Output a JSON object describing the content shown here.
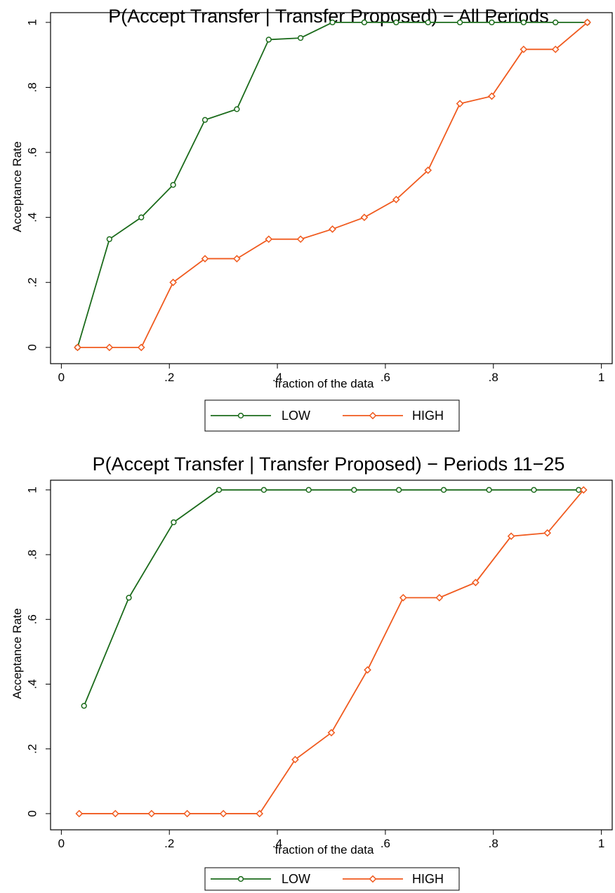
{
  "colors": {
    "low": "#1b6b1b",
    "high": "#f05a1e",
    "frame": "#000000"
  },
  "chart_data": [
    {
      "type": "line",
      "title": "P(Accept Transfer | Transfer Proposed) − All Periods",
      "xlabel": "fraction of the data",
      "ylabel": "Acceptance Rate",
      "xlim": [
        -0.02,
        1.02
      ],
      "ylim": [
        -0.05,
        1.03
      ],
      "xticks": [
        0,
        0.2,
        0.4,
        0.6,
        0.8,
        1
      ],
      "xtick_labels": [
        "0",
        ".2",
        ".4",
        ".6",
        ".8",
        "1"
      ],
      "yticks": [
        0,
        0.2,
        0.4,
        0.6,
        0.8,
        1
      ],
      "ytick_labels": [
        "0",
        ".2",
        ".4",
        ".6",
        ".8",
        "1"
      ],
      "legend": {
        "placement": "bottom",
        "entries": [
          "LOW",
          "HIGH"
        ]
      },
      "series": [
        {
          "name": "LOW",
          "marker": "circle",
          "x": [
            0.03,
            0.089,
            0.148,
            0.207,
            0.266,
            0.325,
            0.384,
            0.443,
            0.502,
            0.561,
            0.62,
            0.679,
            0.738,
            0.797,
            0.856,
            0.915,
            0.974
          ],
          "y": [
            0,
            0.333,
            0.4,
            0.5,
            0.7,
            0.733,
            0.947,
            0.952,
            1,
            1,
            1,
            1,
            1,
            1,
            1,
            1,
            1
          ]
        },
        {
          "name": "HIGH",
          "marker": "diamond",
          "x": [
            0.03,
            0.089,
            0.148,
            0.207,
            0.266,
            0.325,
            0.384,
            0.443,
            0.502,
            0.561,
            0.62,
            0.679,
            0.738,
            0.797,
            0.856,
            0.915,
            0.974
          ],
          "y": [
            0,
            0,
            0,
            0.2,
            0.273,
            0.273,
            0.333,
            0.333,
            0.364,
            0.4,
            0.455,
            0.545,
            0.75,
            0.773,
            0.917,
            0.917,
            1
          ]
        }
      ]
    },
    {
      "type": "line",
      "title": "P(Accept Transfer | Transfer Proposed) − Periods 11−25",
      "xlabel": "fraction of the data",
      "ylabel": "Acceptance Rate",
      "xlim": [
        -0.02,
        1.02
      ],
      "ylim": [
        -0.05,
        1.03
      ],
      "xticks": [
        0,
        0.2,
        0.4,
        0.6,
        0.8,
        1
      ],
      "xtick_labels": [
        "0",
        ".2",
        ".4",
        ".6",
        ".8",
        "1"
      ],
      "yticks": [
        0,
        0.2,
        0.4,
        0.6,
        0.8,
        1
      ],
      "ytick_labels": [
        "0",
        ".2",
        ".4",
        ".6",
        ".8",
        "1"
      ],
      "legend": {
        "placement": "bottom",
        "entries": [
          "LOW",
          "HIGH"
        ]
      },
      "series": [
        {
          "name": "LOW",
          "marker": "circle",
          "x": [
            0.042,
            0.125,
            0.208,
            0.292,
            0.375,
            0.458,
            0.542,
            0.625,
            0.708,
            0.792,
            0.875,
            0.958
          ],
          "y": [
            0.333,
            0.667,
            0.9,
            1,
            1,
            1,
            1,
            1,
            1,
            1,
            1,
            1
          ]
        },
        {
          "name": "HIGH",
          "marker": "diamond",
          "x": [
            0.033,
            0.1,
            0.167,
            0.233,
            0.3,
            0.367,
            0.433,
            0.5,
            0.567,
            0.633,
            0.7,
            0.767,
            0.833,
            0.9,
            0.967
          ],
          "y": [
            0,
            0,
            0,
            0,
            0,
            0,
            0.167,
            0.25,
            0.444,
            0.667,
            0.667,
            0.714,
            0.857,
            0.867,
            1
          ]
        }
      ]
    }
  ]
}
